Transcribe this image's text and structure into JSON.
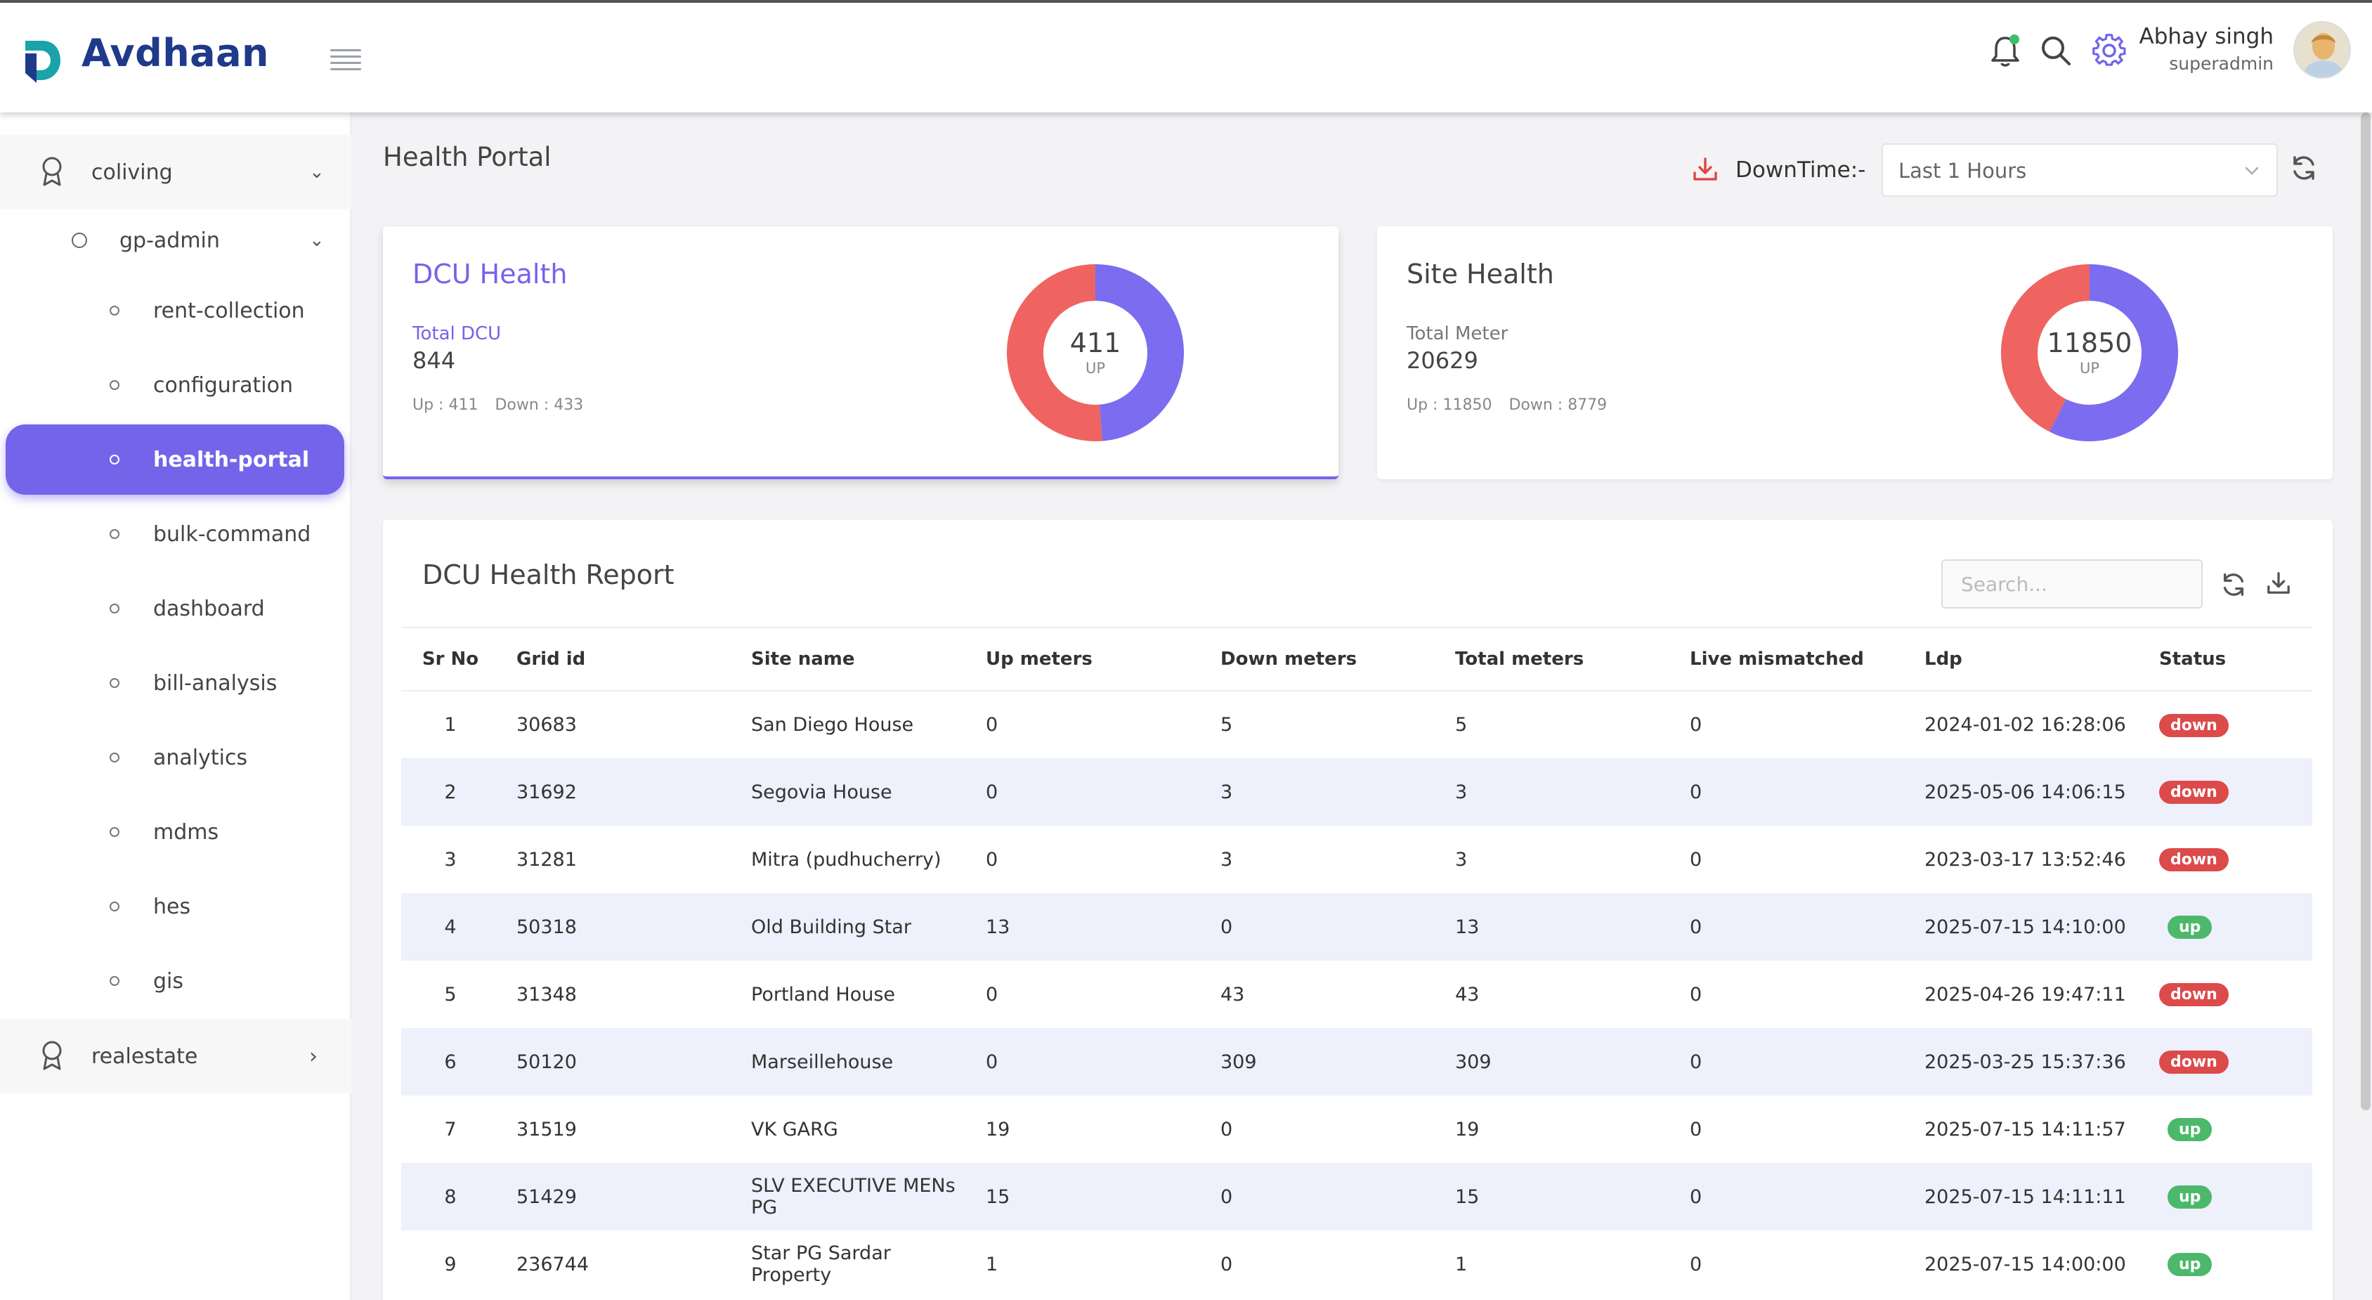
{
  "app": {
    "brand": "Avdhaan"
  },
  "user": {
    "name": "Abhay singh",
    "role": "superadmin"
  },
  "sidebar": {
    "groups": [
      {
        "label": "coliving",
        "expanded": true
      },
      {
        "label": "realestate",
        "expanded": false
      }
    ],
    "sub": {
      "label": "gp-admin"
    },
    "items": [
      {
        "label": "rent-collection"
      },
      {
        "label": "configuration"
      },
      {
        "label": "health-portal",
        "active": true
      },
      {
        "label": "bulk-command"
      },
      {
        "label": "dashboard"
      },
      {
        "label": "bill-analysis"
      },
      {
        "label": "analytics"
      },
      {
        "label": "mdms"
      },
      {
        "label": "hes"
      },
      {
        "label": "gis"
      }
    ]
  },
  "page": {
    "title": "Health Portal",
    "downtime_label": "DownTime:-",
    "downtime_value": "Last 1 Hours"
  },
  "dcu": {
    "title": "DCU Health",
    "sublabel": "Total DCU",
    "total": "844",
    "up_text": "Up : 411",
    "down_text": "Down : 433",
    "center_value": "411",
    "center_label": "UP",
    "up": 411,
    "down": 433
  },
  "site": {
    "title": "Site Health",
    "sublabel": "Total Meter",
    "total": "20629",
    "up_text": "Up : 11850",
    "down_text": "Down : 8779",
    "center_value": "11850",
    "center_label": "UP",
    "up": 11850,
    "down": 8779
  },
  "colors": {
    "up": "#7b6cf0",
    "down": "#ef6461",
    "accent": "#7464ea",
    "badge_up": "#4cb86a",
    "badge_down": "#dc4a4a"
  },
  "report": {
    "title": "DCU Health Report",
    "search_placeholder": "Search...",
    "columns": [
      "Sr No",
      "Grid id",
      "Site name",
      "Up meters",
      "Down meters",
      "Total meters",
      "Live mismatched",
      "Ldp",
      "Status"
    ],
    "rows": [
      {
        "sr": "1",
        "grid": "30683",
        "site": "San Diego House",
        "up": "0",
        "down": "5",
        "total": "5",
        "live": "0",
        "ldp": "2024-01-02 16:28:06",
        "status": "down"
      },
      {
        "sr": "2",
        "grid": "31692",
        "site": "Segovia House",
        "up": "0",
        "down": "3",
        "total": "3",
        "live": "0",
        "ldp": "2025-05-06 14:06:15",
        "status": "down"
      },
      {
        "sr": "3",
        "grid": "31281",
        "site": "Mitra (pudhucherry)",
        "up": "0",
        "down": "3",
        "total": "3",
        "live": "0",
        "ldp": "2023-03-17 13:52:46",
        "status": "down"
      },
      {
        "sr": "4",
        "grid": "50318",
        "site": "Old Building Star",
        "up": "13",
        "down": "0",
        "total": "13",
        "live": "0",
        "ldp": "2025-07-15 14:10:00",
        "status": "up"
      },
      {
        "sr": "5",
        "grid": "31348",
        "site": "Portland House",
        "up": "0",
        "down": "43",
        "total": "43",
        "live": "0",
        "ldp": "2025-04-26 19:47:11",
        "status": "down"
      },
      {
        "sr": "6",
        "grid": "50120",
        "site": "Marseillehouse",
        "up": "0",
        "down": "309",
        "total": "309",
        "live": "0",
        "ldp": "2025-03-25 15:37:36",
        "status": "down"
      },
      {
        "sr": "7",
        "grid": "31519",
        "site": "VK GARG",
        "up": "19",
        "down": "0",
        "total": "19",
        "live": "0",
        "ldp": "2025-07-15 14:11:57",
        "status": "up"
      },
      {
        "sr": "8",
        "grid": "51429",
        "site": "SLV EXECUTIVE MENs PG",
        "up": "15",
        "down": "0",
        "total": "15",
        "live": "0",
        "ldp": "2025-07-15 14:11:11",
        "status": "up"
      },
      {
        "sr": "9",
        "grid": "236744",
        "site": "Star PG Sardar Property",
        "up": "1",
        "down": "0",
        "total": "1",
        "live": "0",
        "ldp": "2025-07-15 14:00:00",
        "status": "up"
      }
    ]
  }
}
